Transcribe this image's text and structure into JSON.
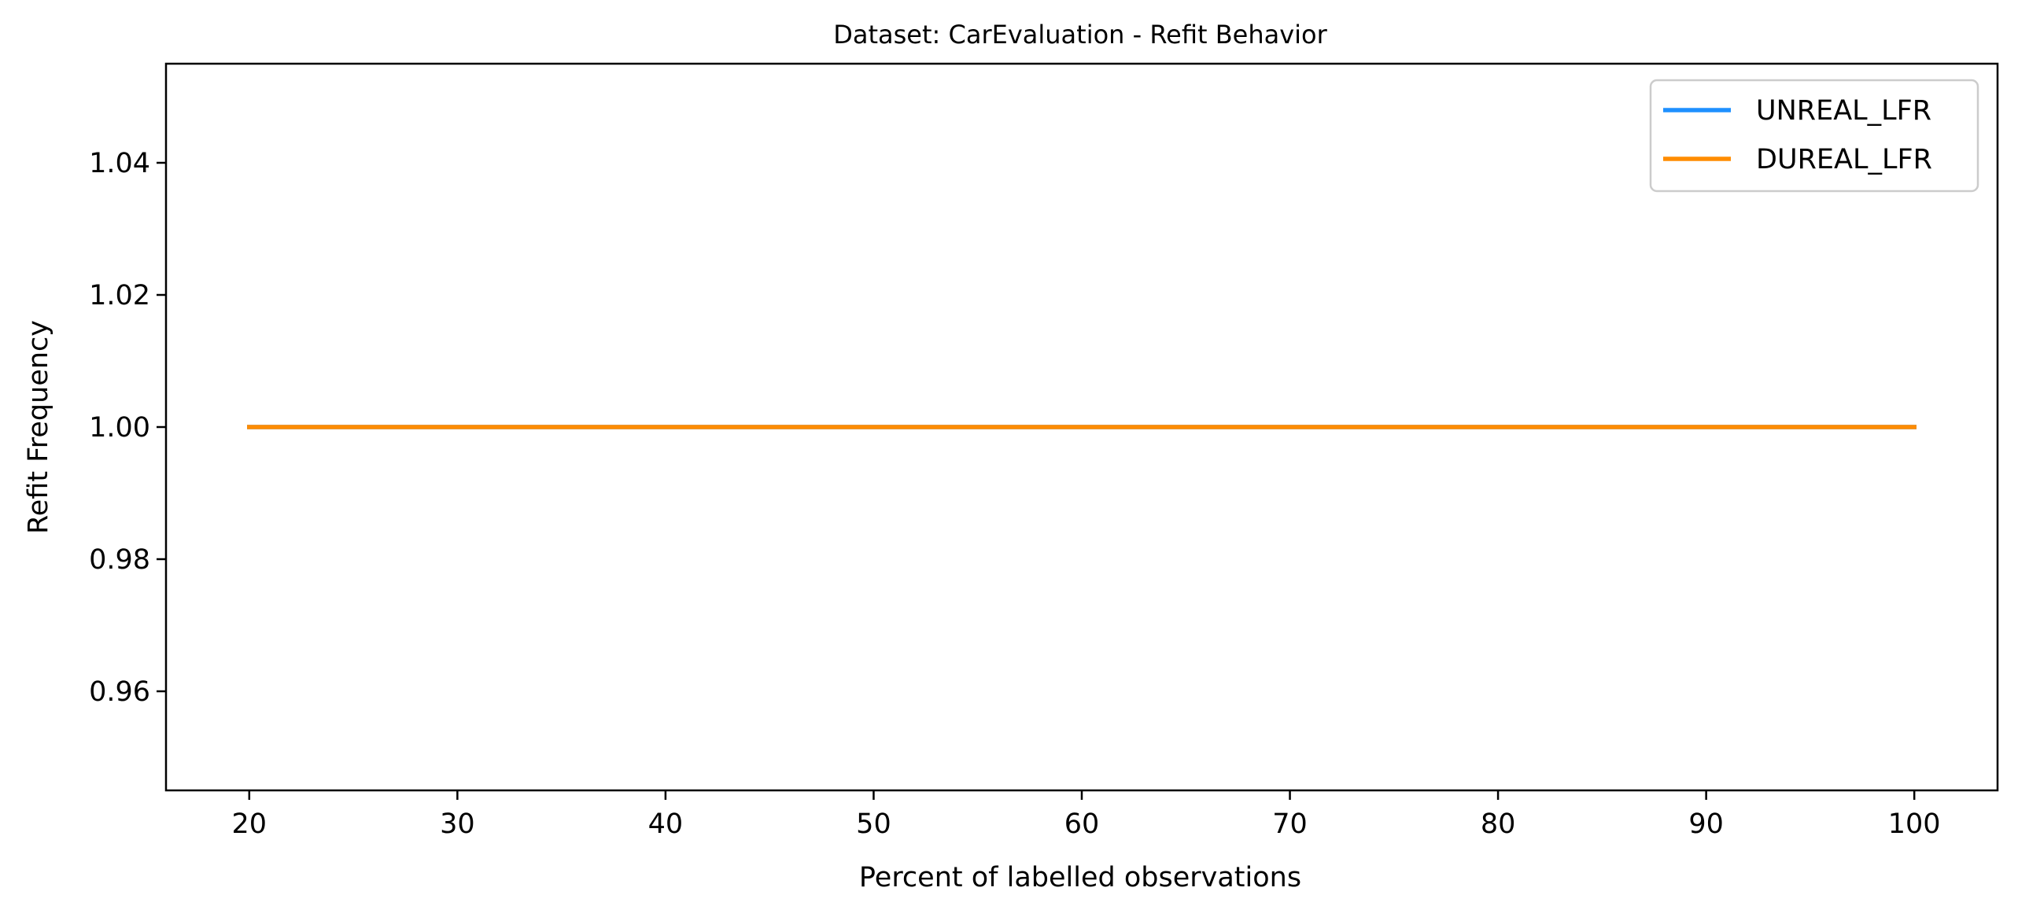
{
  "chart_data": {
    "type": "line",
    "title": "Dataset: CarEvaluation - Refit Behavior",
    "xlabel": "Percent of labelled observations",
    "ylabel": "Refit Frequency",
    "x": [
      20,
      30,
      40,
      50,
      60,
      70,
      80,
      90,
      100
    ],
    "xlim": [
      16,
      104
    ],
    "ylim": [
      0.945,
      1.055
    ],
    "x_ticks": [
      20,
      30,
      40,
      50,
      60,
      70,
      80,
      90,
      100
    ],
    "x_tick_labels": [
      "20",
      "30",
      "40",
      "50",
      "60",
      "70",
      "80",
      "90",
      "100"
    ],
    "y_ticks": [
      0.96,
      0.98,
      1.0,
      1.02,
      1.04
    ],
    "y_tick_labels": [
      "0.96",
      "0.98",
      "1.00",
      "1.02",
      "1.04"
    ],
    "grid": false,
    "legend_position": "top-right",
    "series": [
      {
        "name": "UNREAL_LFR",
        "color": "#1e90ff",
        "values": [
          1,
          1,
          1,
          1,
          1,
          1,
          1,
          1,
          1
        ]
      },
      {
        "name": "DUREAL_LFR",
        "color": "#ff8c00",
        "values": [
          1,
          1,
          1,
          1,
          1,
          1,
          1,
          1,
          1
        ]
      }
    ]
  }
}
